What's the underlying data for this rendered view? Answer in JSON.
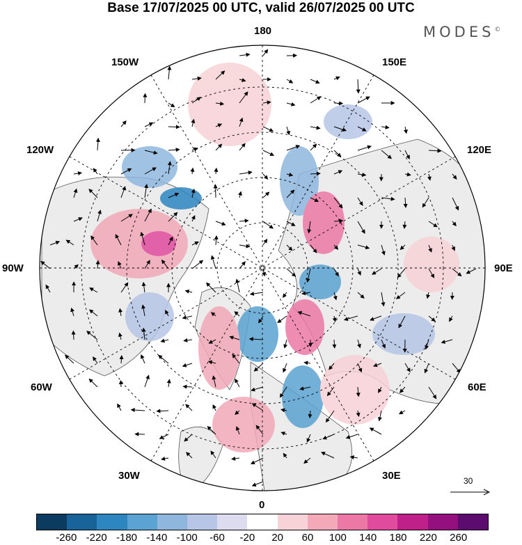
{
  "title": "Base 17/07/2025 00 UTC, valid 26/07/2025 00 UTC",
  "brand": "MODES",
  "brand_mark": "©",
  "lon_labels": {
    "top": "180",
    "bottom": "0",
    "left": "90W",
    "right": "90E",
    "upper_left_1": "150W",
    "upper_left_2": "120W",
    "upper_right_1": "150E",
    "upper_right_2": "120E",
    "lower_left_1": "60W",
    "lower_left_2": "30W",
    "lower_right_1": "60E",
    "lower_right_2": "30E"
  },
  "reference_vector": {
    "label": "30",
    "icon": "arrow-right-icon"
  },
  "colorbar": {
    "colors": [
      "#0b3b5e",
      "#17639a",
      "#2e86c1",
      "#5aa3d2",
      "#8fb7de",
      "#b7c6e6",
      "#dcdcee",
      "#ffffff",
      "#f7d2d6",
      "#f3a9b8",
      "#ec78a5",
      "#e04b9d",
      "#c0208a",
      "#93107e",
      "#5c0b6e"
    ],
    "ticks": [
      "-260",
      "-220",
      "-180",
      "-140",
      "-100",
      "-60",
      "-20",
      "20",
      "60",
      "100",
      "140",
      "180",
      "220",
      "260"
    ]
  },
  "colors": {
    "land": "#ececec",
    "ocean": "#ffffff",
    "grid": "#000000"
  }
}
